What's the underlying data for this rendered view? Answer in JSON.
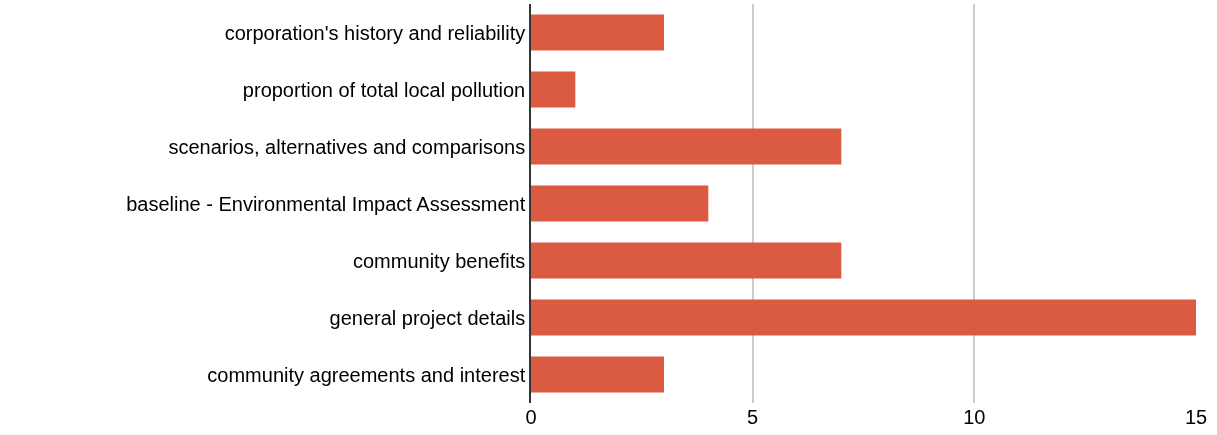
{
  "chart_data": {
    "type": "bar",
    "orientation": "horizontal",
    "categories": [
      "corporation's history and reliability",
      "proportion of total local pollution",
      "scenarios, alternatives and comparisons",
      "baseline - Environmental Impact Assessment",
      "community benefits",
      "general project details",
      "community agreements and interest"
    ],
    "values": [
      3,
      1,
      7,
      4,
      7,
      15,
      3
    ],
    "color": "#da5b42",
    "xlim": [
      0,
      15
    ],
    "xticks": [
      0,
      5,
      10,
      15
    ],
    "grid": "x",
    "legend": false
  }
}
